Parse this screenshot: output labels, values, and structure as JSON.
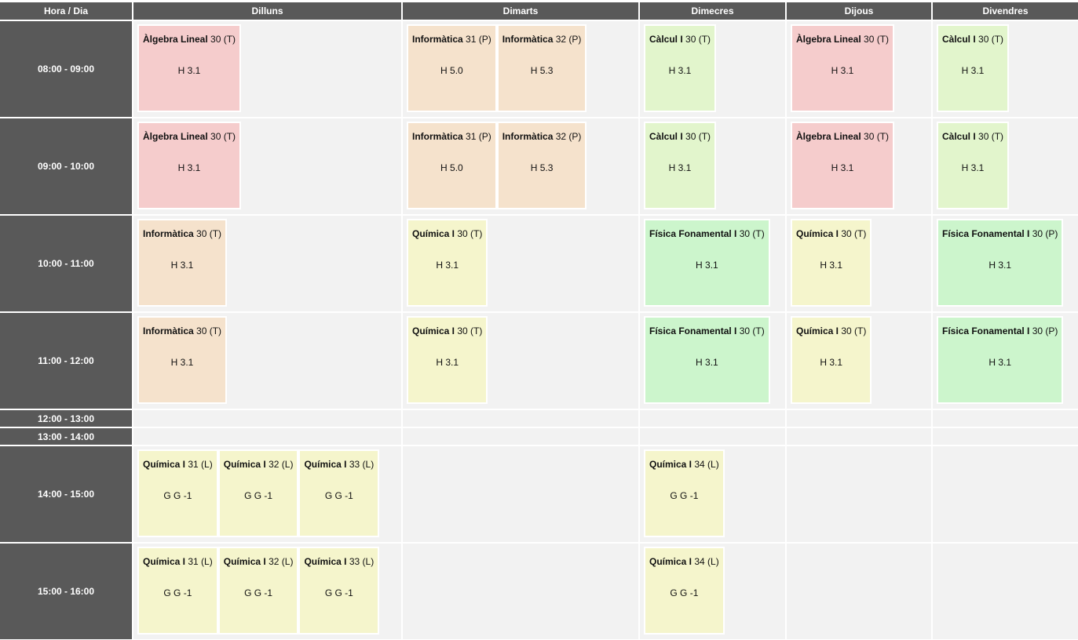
{
  "header": {
    "columns": [
      "Hora / Dia",
      "Dilluns",
      "Dimarts",
      "Dimecres",
      "Dijous",
      "Divendres"
    ]
  },
  "rows": [
    {
      "time": "08:00 - 09:00",
      "days": [
        [
          {
            "name": "Àlgebra Lineal",
            "group": "30 (T)",
            "room": "H 3.1",
            "color": "#f5cccc"
          }
        ],
        [
          {
            "name": "Informàtica",
            "group": "31 (P)",
            "room": "H 5.0",
            "color": "#f5e2cc"
          },
          {
            "name": "Informàtica",
            "group": "32 (P)",
            "room": "H 5.3",
            "color": "#f5e2cc"
          }
        ],
        [
          {
            "name": "Càlcul I",
            "group": "30 (T)",
            "room": "H 3.1",
            "color": "#e2f5cc"
          }
        ],
        [
          {
            "name": "Àlgebra Lineal",
            "group": "30 (T)",
            "room": "H 3.1",
            "color": "#f5cccc"
          }
        ],
        [
          {
            "name": "Càlcul I",
            "group": "30 (T)",
            "room": "H 3.1",
            "color": "#e2f5cc"
          }
        ]
      ]
    },
    {
      "time": "09:00 - 10:00",
      "days": [
        [
          {
            "name": "Àlgebra Lineal",
            "group": "30 (T)",
            "room": "H 3.1",
            "color": "#f5cccc"
          }
        ],
        [
          {
            "name": "Informàtica",
            "group": "31 (P)",
            "room": "H 5.0",
            "color": "#f5e2cc"
          },
          {
            "name": "Informàtica",
            "group": "32 (P)",
            "room": "H 5.3",
            "color": "#f5e2cc"
          }
        ],
        [
          {
            "name": "Càlcul I",
            "group": "30 (T)",
            "room": "H 3.1",
            "color": "#e2f5cc"
          }
        ],
        [
          {
            "name": "Àlgebra Lineal",
            "group": "30 (T)",
            "room": "H 3.1",
            "color": "#f5cccc"
          }
        ],
        [
          {
            "name": "Càlcul I",
            "group": "30 (T)",
            "room": "H 3.1",
            "color": "#e2f5cc"
          }
        ]
      ]
    },
    {
      "time": "10:00 - 11:00",
      "days": [
        [
          {
            "name": "Informàtica",
            "group": "30 (T)",
            "room": "H 3.1",
            "color": "#f5e2cc"
          }
        ],
        [
          {
            "name": "Química I",
            "group": "30 (T)",
            "room": "H 3.1",
            "color": "#f5f5cc"
          }
        ],
        [
          {
            "name": "Física Fonamental I",
            "group": "30 (T)",
            "room": "H 3.1",
            "color": "#ccf5cc"
          }
        ],
        [
          {
            "name": "Química I",
            "group": "30 (T)",
            "room": "H 3.1",
            "color": "#f5f5cc"
          }
        ],
        [
          {
            "name": "Física Fonamental I",
            "group": "30 (P)",
            "room": "H 3.1",
            "color": "#ccf5cc"
          }
        ]
      ]
    },
    {
      "time": "11:00 - 12:00",
      "days": [
        [
          {
            "name": "Informàtica",
            "group": "30 (T)",
            "room": "H 3.1",
            "color": "#f5e2cc"
          }
        ],
        [
          {
            "name": "Química I",
            "group": "30 (T)",
            "room": "H 3.1",
            "color": "#f5f5cc"
          }
        ],
        [
          {
            "name": "Física Fonamental I",
            "group": "30 (T)",
            "room": "H 3.1",
            "color": "#ccf5cc"
          }
        ],
        [
          {
            "name": "Química I",
            "group": "30 (T)",
            "room": "H 3.1",
            "color": "#f5f5cc"
          }
        ],
        [
          {
            "name": "Física Fonamental I",
            "group": "30 (P)",
            "room": "H 3.1",
            "color": "#ccf5cc"
          }
        ]
      ]
    },
    {
      "time": "12:00 - 13:00",
      "days": [
        [],
        [],
        [],
        [],
        []
      ]
    },
    {
      "time": "13:00 - 14:00",
      "days": [
        [],
        [],
        [],
        [],
        []
      ]
    },
    {
      "time": "14:00 - 15:00",
      "days": [
        [
          {
            "name": "Química I",
            "group": "31 (L)",
            "room": "G G -1",
            "color": "#f5f5cc"
          },
          {
            "name": "Química I",
            "group": "32 (L)",
            "room": "G G -1",
            "color": "#f5f5cc"
          },
          {
            "name": "Química I",
            "group": "33 (L)",
            "room": "G G -1",
            "color": "#f5f5cc"
          }
        ],
        [],
        [
          {
            "name": "Química I",
            "group": "34 (L)",
            "room": "G G -1",
            "color": "#f5f5cc"
          }
        ],
        [],
        []
      ]
    },
    {
      "time": "15:00 - 16:00",
      "days": [
        [
          {
            "name": "Química I",
            "group": "31 (L)",
            "room": "G G -1",
            "color": "#f5f5cc"
          },
          {
            "name": "Química I",
            "group": "32 (L)",
            "room": "G G -1",
            "color": "#f5f5cc"
          },
          {
            "name": "Química I",
            "group": "33 (L)",
            "room": "G G -1",
            "color": "#f5f5cc"
          }
        ],
        [],
        [
          {
            "name": "Química I",
            "group": "34 (L)",
            "room": "G G -1",
            "color": "#f5f5cc"
          }
        ],
        [],
        []
      ]
    }
  ]
}
